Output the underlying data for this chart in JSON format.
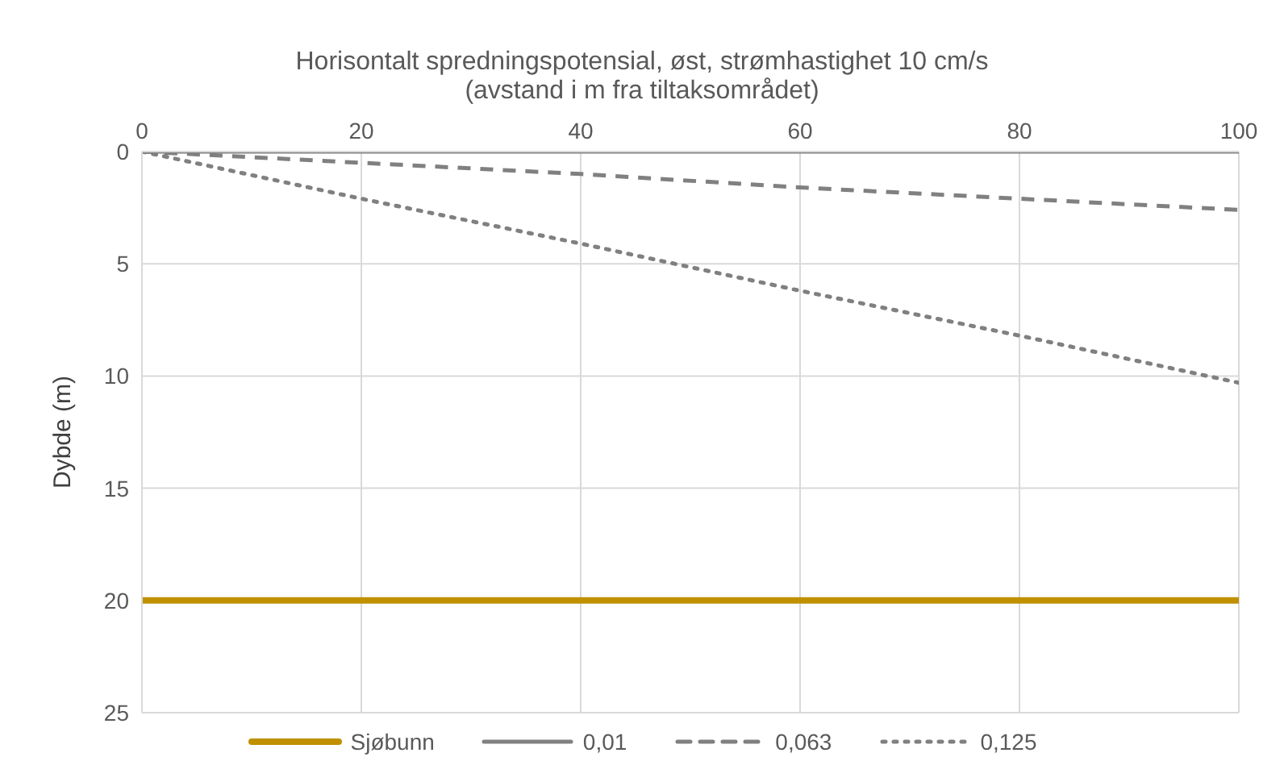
{
  "chart_data": {
    "type": "line",
    "title": "Horisontalt spredningspotensial, øst, strømhastighet 10 cm/s",
    "xlabel": "(avstand i m fra tiltaksområdet)",
    "ylabel": "Dybde (m)",
    "x": [
      0,
      20,
      40,
      60,
      80,
      100
    ],
    "series": [
      {
        "name": "Sjøbunn",
        "color": "#c09000",
        "line_style": "solid",
        "values": [
          20,
          20,
          20,
          20,
          20,
          20
        ]
      },
      {
        "name": "0,01",
        "color": "#808080",
        "line_style": "solid",
        "values": [
          0,
          0,
          0,
          0,
          0,
          0
        ]
      },
      {
        "name": "0,063",
        "color": "#808080",
        "line_style": "dashed",
        "values": [
          0,
          0.5,
          1.0,
          1.6,
          2.1,
          2.6
        ]
      },
      {
        "name": "0,125",
        "color": "#808080",
        "line_style": "dotted",
        "values": [
          0,
          2.1,
          4.1,
          6.2,
          8.2,
          10.3
        ]
      }
    ],
    "xlim": [
      0,
      100
    ],
    "xticks": [
      0,
      20,
      40,
      60,
      80,
      100
    ],
    "ylim": [
      25,
      0
    ],
    "yticks": [
      0,
      5,
      10,
      15,
      20,
      25
    ],
    "grid": true,
    "legend": "bottom",
    "marker": "none"
  }
}
